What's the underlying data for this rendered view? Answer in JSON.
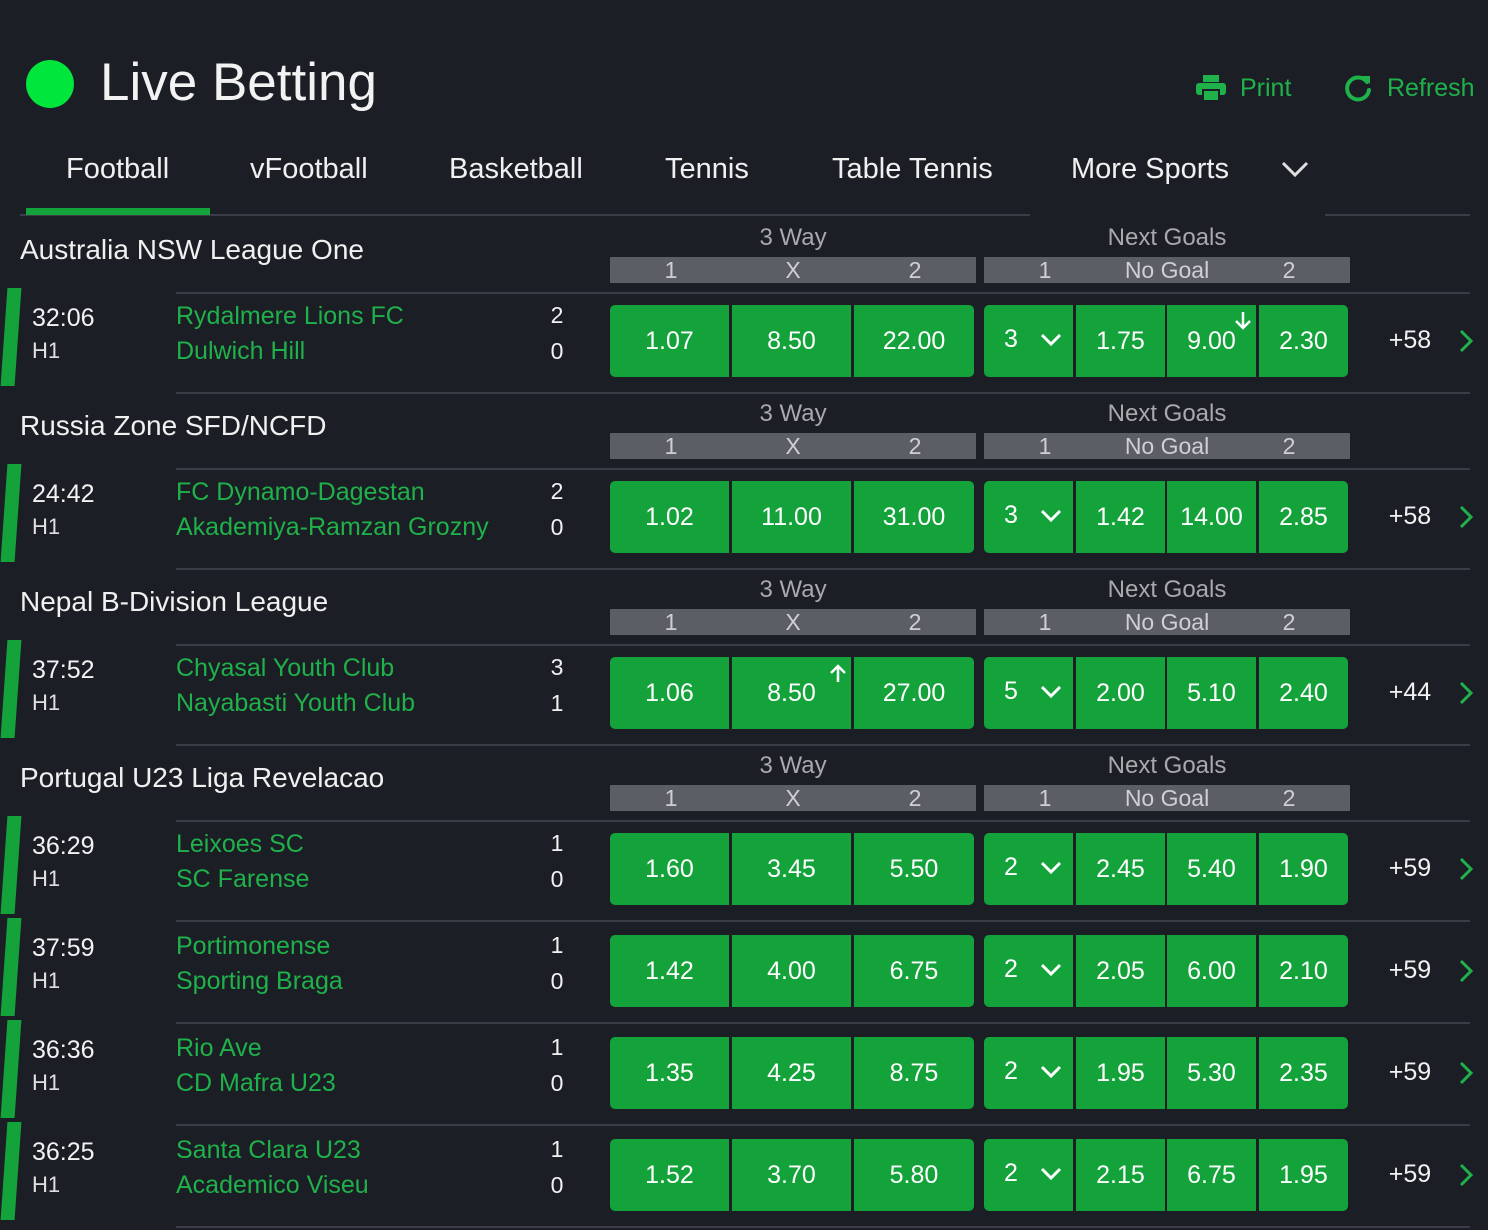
{
  "header": {
    "title": "Live Betting",
    "print_label": "Print",
    "refresh_label": "Refresh",
    "accent_color": "#13a33a",
    "live_color": "#00e63c"
  },
  "tabs": [
    {
      "label": "Football",
      "active": true
    },
    {
      "label": "vFootball"
    },
    {
      "label": "Basketball"
    },
    {
      "label": "Tennis"
    },
    {
      "label": "Table Tennis"
    },
    {
      "label": "More Sports"
    }
  ],
  "market_headers": {
    "three_way": "3 Way",
    "next_goals": "Next Goals",
    "three_way_cols": [
      "1",
      "X",
      "2"
    ],
    "next_goals_cols": [
      "1",
      "No Goal",
      "2"
    ]
  },
  "leagues": [
    {
      "name": "Australia NSW League One",
      "matches": [
        {
          "time": "32:06",
          "period": "H1",
          "home": "Rydalmere Lions FC",
          "away": "Dulwich Hill",
          "home_score": "2",
          "away_score": "0",
          "three_way": [
            "1.07",
            "8.50",
            "22.00"
          ],
          "goal_line": "3",
          "next_goal": [
            "1.75",
            "9.00",
            "2.30"
          ],
          "more": "+58",
          "movement": "no-goal-down"
        }
      ]
    },
    {
      "name": "Russia Zone SFD/NCFD",
      "matches": [
        {
          "time": "24:42",
          "period": "H1",
          "home": "FC Dynamo-Dagestan",
          "away": "Akademiya-Ramzan Grozny",
          "home_score": "2",
          "away_score": "0",
          "three_way": [
            "1.02",
            "11.00",
            "31.00"
          ],
          "goal_line": "3",
          "next_goal": [
            "1.42",
            "14.00",
            "2.85"
          ],
          "more": "+58"
        }
      ]
    },
    {
      "name": "Nepal B-Division League",
      "matches": [
        {
          "time": "37:52",
          "period": "H1",
          "home": "Chyasal Youth Club",
          "away": "Nayabasti Youth Club",
          "home_score": "3",
          "away_score": "1",
          "three_way": [
            "1.06",
            "8.50",
            "27.00"
          ],
          "goal_line": "5",
          "next_goal": [
            "2.00",
            "5.10",
            "2.40"
          ],
          "more": "+44",
          "movement": "draw-up"
        }
      ]
    },
    {
      "name": "Portugal U23 Liga Revelacao",
      "matches": [
        {
          "time": "36:29",
          "period": "H1",
          "home": "Leixoes SC",
          "away": "SC Farense",
          "home_score": "1",
          "away_score": "0",
          "three_way": [
            "1.60",
            "3.45",
            "5.50"
          ],
          "goal_line": "2",
          "next_goal": [
            "2.45",
            "5.40",
            "1.90"
          ],
          "more": "+59"
        },
        {
          "time": "37:59",
          "period": "H1",
          "home": "Portimonense",
          "away": "Sporting Braga",
          "home_score": "1",
          "away_score": "0",
          "three_way": [
            "1.42",
            "4.00",
            "6.75"
          ],
          "goal_line": "2",
          "next_goal": [
            "2.05",
            "6.00",
            "2.10"
          ],
          "more": "+59"
        },
        {
          "time": "36:36",
          "period": "H1",
          "home": "Rio Ave",
          "away": "CD Mafra U23",
          "home_score": "1",
          "away_score": "0",
          "three_way": [
            "1.35",
            "4.25",
            "8.75"
          ],
          "goal_line": "2",
          "next_goal": [
            "1.95",
            "5.30",
            "2.35"
          ],
          "more": "+59"
        },
        {
          "time": "36:25",
          "period": "H1",
          "home": "Santa Clara U23",
          "away": "Academico Viseu",
          "home_score": "1",
          "away_score": "0",
          "three_way": [
            "1.52",
            "3.70",
            "5.80"
          ],
          "goal_line": "2",
          "next_goal": [
            "2.15",
            "6.75",
            "1.95"
          ],
          "more": "+59"
        }
      ]
    }
  ]
}
